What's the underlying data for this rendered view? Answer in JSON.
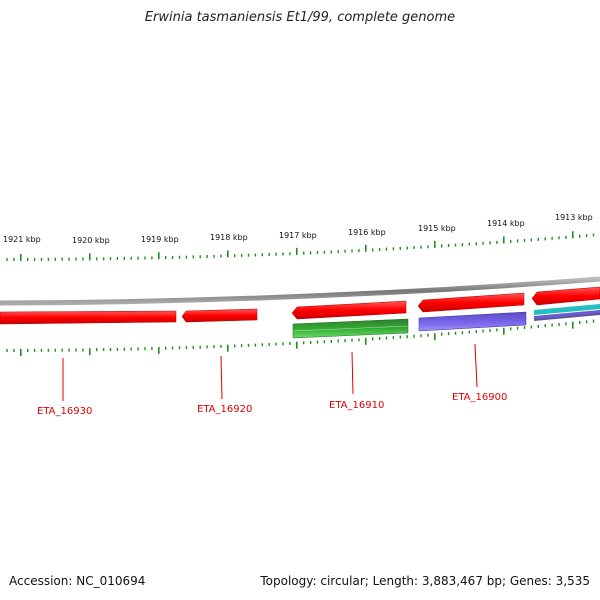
{
  "title": "Erwinia tasmaniensis Et1/99, complete genome",
  "footer": {
    "accession": "Accession: NC_010694",
    "summary": "Topology: circular; Length: 3,883,467 bp; Genes: 3,535"
  },
  "scale_labels": [
    "1921 kbp",
    "1920 kbp",
    "1919 kbp",
    "1918 kbp",
    "1917 kbp",
    "1916 kbp",
    "1915 kbp",
    "1914 kbp",
    "1913 kbp"
  ],
  "gene_labels": [
    "ETA_16930",
    "ETA_16920",
    "ETA_16910",
    "ETA_16900"
  ],
  "colors": {
    "gene_forward": "#ff0000",
    "backbone": "#888888",
    "tick": "#1f8f1f",
    "label": "#e00000",
    "green_feature": "#33aa33",
    "purple_feature": "#6a5acd",
    "cyan_feature": "#22c0c0"
  }
}
